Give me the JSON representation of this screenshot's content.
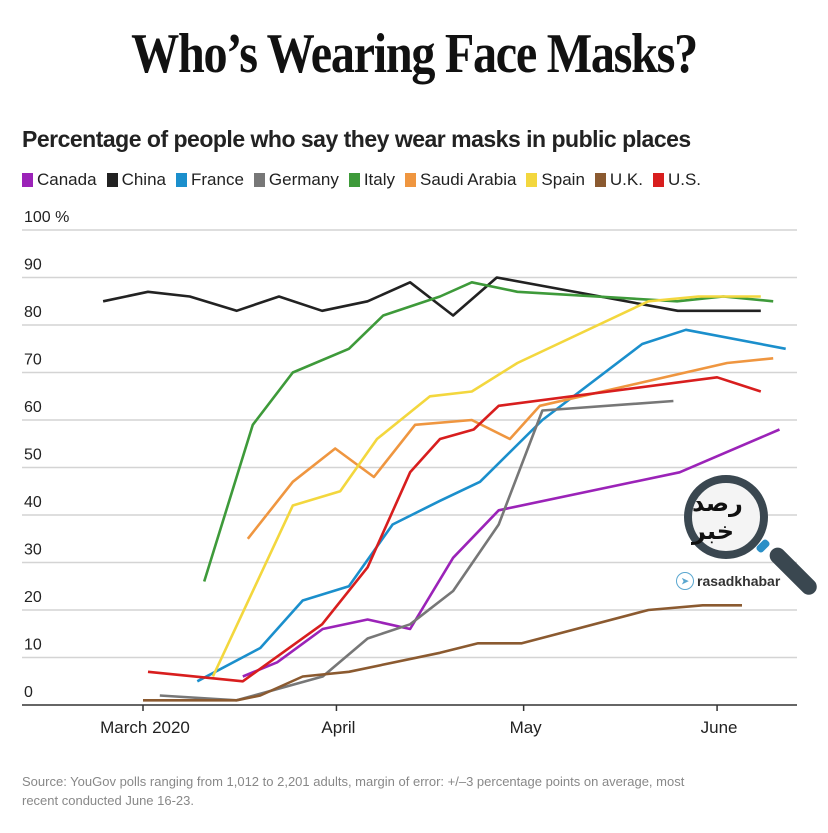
{
  "header": {
    "title": "Who’s Wearing Face Masks?",
    "subtitle": "Percentage of people who say they wear masks in public places"
  },
  "footer": {
    "source": "Source: YouGov polls ranging from 1,012 to 2,201 adults, margin of error: +/–3 percentage points on average, most recent conducted June 16-23."
  },
  "watermark": {
    "logo_text": "رصد خبر",
    "handle": "rasadkhabar",
    "icon": "telegram-icon"
  },
  "chart_data": {
    "type": "line",
    "title": "Who’s Wearing Face Masks?",
    "subtitle": "Percentage of people who say they wear masks in public places",
    "xlabel": "",
    "ylabel": "",
    "x_unit": "days since March 1, 2020",
    "xlim": [
      -7,
      104
    ],
    "ylim": [
      0,
      100
    ],
    "y_ticks": [
      0,
      10,
      20,
      30,
      40,
      50,
      60,
      70,
      80,
      90,
      100
    ],
    "y_tick_labels": [
      "0",
      "10",
      "20",
      "30",
      "40",
      "50",
      "60",
      "70",
      "80",
      "90",
      "100 %"
    ],
    "x_ticks": [
      0,
      31,
      61,
      92
    ],
    "x_tick_labels": [
      "March 2020",
      "April",
      "May",
      "June"
    ],
    "grid": true,
    "legend": "top",
    "series": [
      {
        "name": "Canada",
        "color": "#9b23b8",
        "x": [
          16,
          21.5,
          28.8,
          36,
          42.8,
          49.7,
          57,
          86,
          102
        ],
        "y": [
          6,
          9,
          16,
          18,
          16,
          31,
          41,
          49,
          58
        ]
      },
      {
        "name": "China",
        "color": "#222222",
        "x": [
          -6.4,
          0.8,
          7.5,
          15,
          21.8,
          28.7,
          36,
          42.8,
          49.7,
          56.7,
          85.7,
          99
        ],
        "y": [
          85,
          87,
          86,
          83,
          86,
          83,
          85,
          89,
          82,
          90,
          83,
          83
        ]
      },
      {
        "name": "France",
        "color": "#1b8fcc",
        "x": [
          8.7,
          18.8,
          25.6,
          33,
          40,
          47.6,
          54,
          64,
          80,
          87,
          103
        ],
        "y": [
          5,
          12,
          22,
          25,
          38,
          43,
          47,
          60,
          76,
          79,
          75
        ]
      },
      {
        "name": "Germany",
        "color": "#777777",
        "x": [
          2.7,
          15,
          28.8,
          36,
          42.8,
          49.7,
          57,
          64,
          85
        ],
        "y": [
          2,
          1,
          6,
          14,
          17,
          24,
          38,
          62,
          64
        ]
      },
      {
        "name": "Italy",
        "color": "#3e9a3a",
        "x": [
          9.8,
          17.6,
          24,
          33,
          38.5,
          47.6,
          52.7,
          60,
          85.6,
          93,
          101
        ],
        "y": [
          26,
          59,
          70,
          75,
          82,
          86,
          89,
          87,
          85,
          86,
          85
        ]
      },
      {
        "name": "Saudi Arabia",
        "color": "#ef9640",
        "x": [
          16.8,
          24,
          30.8,
          37,
          43.6,
          52.7,
          58.8,
          63.6,
          93.6,
          101
        ],
        "y": [
          35,
          47,
          54,
          48,
          59,
          60,
          56,
          63,
          72,
          73
        ]
      },
      {
        "name": "Spain",
        "color": "#f3d73e",
        "x": [
          11.2,
          24,
          31.6,
          37.5,
          46,
          52.7,
          60,
          81,
          89,
          99
        ],
        "y": [
          6,
          42,
          45,
          56,
          65,
          66,
          72,
          85,
          86,
          86
        ]
      },
      {
        "name": "U.K.",
        "color": "#8b5a30",
        "x": [
          0,
          15,
          18.8,
          25.6,
          33,
          47.6,
          53.7,
          60.7,
          81,
          89.7,
          96
        ],
        "y": [
          1,
          1,
          2,
          6,
          7,
          11,
          13,
          13,
          20,
          21,
          21
        ]
      },
      {
        "name": "U.S.",
        "color": "#d81e1e",
        "x": [
          0.8,
          16,
          28.7,
          36,
          42.8,
          47.6,
          53,
          57,
          92,
          99
        ],
        "y": [
          7,
          5,
          17,
          29,
          49,
          56,
          58,
          63,
          69,
          66
        ]
      }
    ]
  }
}
